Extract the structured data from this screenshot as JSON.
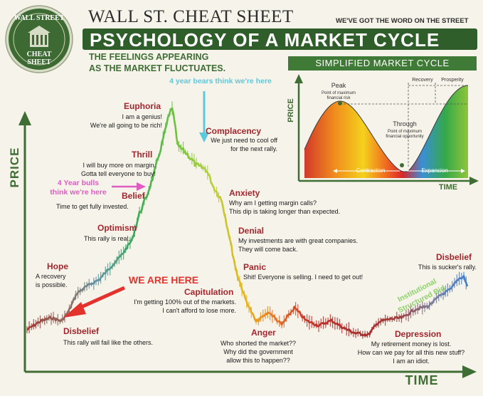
{
  "brand": {
    "logo_lines": [
      "WALL STREET",
      "CHEAT",
      "SHEET"
    ],
    "title": "WALL ST. CHEAT SHEET",
    "tagline": "WE'VE GOT THE WORD ON THE STREET"
  },
  "banner_title": "PSYCHOLOGY OF A MARKET CYCLE",
  "subtitle_lines": [
    "THE FEELINGS APPEARING",
    "AS THE MARKET FLUCTUATES."
  ],
  "inset": {
    "banner": "SIMPLIFIED MARKET CYCLE",
    "ylabel": "PRICE",
    "xlabel": "TIME",
    "peak_title": "Peak",
    "peak_sub": [
      "Point of maximum",
      "financial risk"
    ],
    "trough_title": "Through",
    "trough_sub": [
      "Point of maximum",
      "financial opportunity"
    ],
    "recovery": "Recovery",
    "prosperity": "Prosperity",
    "contraction": "Contraction",
    "expansion": "Expansion"
  },
  "callouts": {
    "bears": "4 year bears think we're here",
    "bulls": [
      "4 Year bulls",
      "think we're here"
    ],
    "we_are_here": "WE ARE HERE",
    "institutional": [
      "Institutional",
      "Structured Bid"
    ]
  },
  "colors": {
    "brand_green": "#2f5e2b",
    "stage_red": "#a4262c",
    "arrow_red": "#e4332d",
    "arrow_cyan": "#5cc9dc",
    "arrow_pink": "#e05cc2",
    "bid_green": "#8ed06a"
  },
  "chart_data": {
    "type": "line",
    "title": "PSYCHOLOGY OF A MARKET CYCLE",
    "xlabel": "TIME",
    "ylabel": "PRICE",
    "stages": [
      {
        "name": "Disbelief",
        "quote": [
          "This rally will fail like the others."
        ]
      },
      {
        "name": "Hope",
        "quote": [
          "A recovery",
          "is possible."
        ]
      },
      {
        "name": "Optimism",
        "quote": [
          "This rally is real."
        ]
      },
      {
        "name": "Belief",
        "quote": [
          "Time to get fully invested."
        ]
      },
      {
        "name": "Thrill",
        "quote": [
          "I will buy more on margin.",
          "Gotta tell everyone to buy!"
        ]
      },
      {
        "name": "Euphoria",
        "quote": [
          "I am a genius!",
          "We're all going to be rich!"
        ]
      },
      {
        "name": "Complacency",
        "quote": [
          "We just need to cool off",
          "for the next rally."
        ]
      },
      {
        "name": "Anxiety",
        "quote": [
          "Why am I getting margin calls?",
          "This dip is taking longer than expected."
        ]
      },
      {
        "name": "Denial",
        "quote": [
          "My investments are with great companies.",
          "They will come back."
        ]
      },
      {
        "name": "Panic",
        "quote": [
          "Shit! Everyone is selling. I need to get out!"
        ]
      },
      {
        "name": "Capitulation",
        "quote": [
          "I'm getting 100% out of the markets.",
          "I can't afford to lose more."
        ]
      },
      {
        "name": "Anger",
        "quote": [
          "Who shorted the market??",
          "Why did the government",
          "allow this to happen??"
        ]
      },
      {
        "name": "Depression",
        "quote": [
          "My retirement money is lost.",
          "How can we pay for all this new stuff?",
          "I am an idiot."
        ]
      },
      {
        "name": "Disbelief",
        "quote": [
          "This is sucker's rally."
        ]
      }
    ]
  }
}
